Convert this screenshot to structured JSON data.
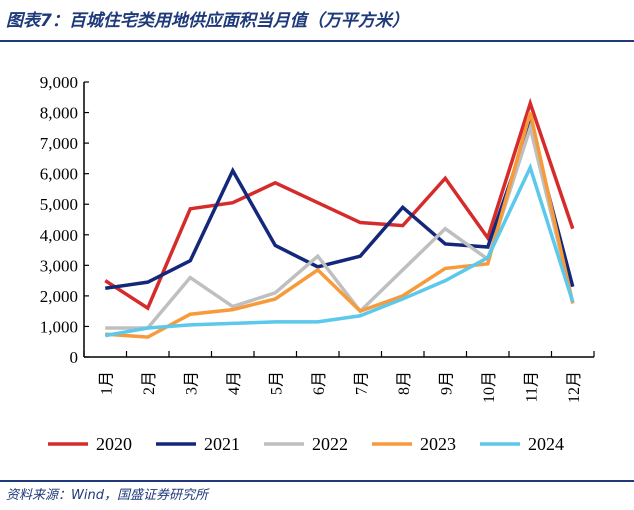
{
  "title": "图表7：百城住宅类用地供应面积当月值（万平方米）",
  "source": "资料来源：Wind，国盛证券研究所",
  "chart_data": {
    "type": "line",
    "title": "",
    "xlabel": "",
    "ylabel": "",
    "ylim": [
      0,
      9000
    ],
    "yticks": [
      0,
      1000,
      2000,
      3000,
      4000,
      5000,
      6000,
      7000,
      8000,
      9000
    ],
    "ytick_labels": [
      "0",
      "1,000",
      "2,000",
      "3,000",
      "4,000",
      "5,000",
      "6,000",
      "7,000",
      "8,000",
      "9,000"
    ],
    "categories": [
      "1月",
      "2月",
      "3月",
      "4月",
      "5月",
      "6月",
      "7月",
      "8月",
      "9月",
      "10月",
      "11月",
      "12月"
    ],
    "grid": false,
    "legend": "bottom",
    "series": [
      {
        "name": "2020",
        "color": "#d62b2b",
        "values": [
          2500,
          1600,
          4850,
          5050,
          5700,
          5050,
          4400,
          4300,
          5850,
          3900,
          8300,
          4200
        ]
      },
      {
        "name": "2021",
        "color": "#13287a",
        "values": [
          2250,
          2450,
          3150,
          6100,
          3650,
          2950,
          3300,
          4900,
          3700,
          3600,
          7600,
          2300
        ]
      },
      {
        "name": "2022",
        "color": "#bfbfbf",
        "values": [
          950,
          950,
          2600,
          1650,
          2100,
          3300,
          1500,
          2850,
          4200,
          3200,
          7500,
          1800
        ]
      },
      {
        "name": "2023",
        "color": "#f79a3a",
        "values": [
          750,
          650,
          1400,
          1550,
          1900,
          2850,
          1500,
          2000,
          2900,
          3050,
          8000,
          1750
        ]
      },
      {
        "name": "2024",
        "color": "#5bc8ec",
        "values": [
          700,
          950,
          1050,
          1100,
          1150,
          1150,
          1350,
          1900,
          2500,
          3250,
          6200,
          1800
        ]
      }
    ]
  }
}
